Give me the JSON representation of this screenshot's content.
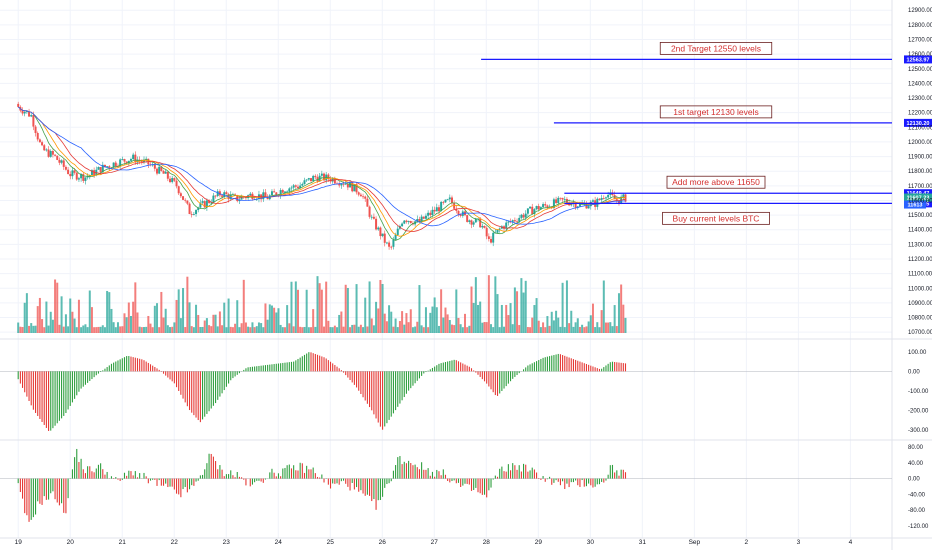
{
  "colors": {
    "up": "#26a69a",
    "down": "#ef5350",
    "target_line": "#1a1aff",
    "annotation_text": "#d32f2f",
    "ma_blue": "#2962ff",
    "ma_red": "#e53935",
    "ma_orange": "#ff9800",
    "ma_green": "#43a047",
    "osc_up": "#2e9e3e",
    "osc_down": "#e53935",
    "grid": "#f0f3fa",
    "axis_text": "#131722"
  },
  "chart_data": [
    {
      "type": "candlestick",
      "panel": "price",
      "y_axis_ticks": [
        12900,
        12800,
        12700,
        12600,
        12500,
        12400,
        12300,
        12200,
        12100,
        12000,
        11900,
        11800,
        11700,
        11600,
        11500,
        11400,
        11300,
        11200,
        11100,
        11000,
        10900,
        10800,
        10700
      ],
      "y_axis_labels": [
        "12900.00",
        "12800.00",
        "12700.00",
        "12600.00",
        "12500.00",
        "12400.00",
        "12300.00",
        "12200.00",
        "12100.00",
        "12000.00",
        "11900.00",
        "11800.00",
        "11700.00",
        "11600.00",
        "11500.00",
        "11400.00",
        "11300.00",
        "11200.00",
        "11100.00",
        "11000.00",
        "10900.00",
        "10800.00",
        "10700.00"
      ],
      "ylim": [
        10660,
        12970
      ],
      "x_axis_labels": [
        "19",
        "20",
        "21",
        "22",
        "23",
        "24",
        "25",
        "26",
        "27",
        "28",
        "29",
        "30",
        "31",
        "Sep",
        "2",
        "3",
        "4"
      ],
      "x_label_days": [
        0,
        1,
        2,
        3,
        4,
        5,
        6,
        7,
        8,
        9,
        10,
        11,
        12,
        13,
        14,
        15,
        16
      ],
      "day_range": [
        -0.35,
        16.8
      ],
      "data_end_day": 11.7,
      "price_path": [
        [
          0.0,
          12240
        ],
        [
          0.25,
          12180
        ],
        [
          0.45,
          11950
        ],
        [
          0.7,
          11900
        ],
        [
          1.0,
          11780
        ],
        [
          1.3,
          11760
        ],
        [
          1.6,
          11820
        ],
        [
          1.9,
          11860
        ],
        [
          2.2,
          11890
        ],
        [
          2.5,
          11850
        ],
        [
          2.8,
          11780
        ],
        [
          3.05,
          11700
        ],
        [
          3.3,
          11520
        ],
        [
          3.6,
          11580
        ],
        [
          3.9,
          11650
        ],
        [
          4.2,
          11610
        ],
        [
          4.5,
          11640
        ],
        [
          4.8,
          11620
        ],
        [
          5.1,
          11680
        ],
        [
          5.4,
          11700
        ],
        [
          5.7,
          11760
        ],
        [
          6.0,
          11750
        ],
        [
          6.3,
          11720
        ],
        [
          6.6,
          11650
        ],
        [
          6.8,
          11470
        ],
        [
          7.0,
          11350
        ],
        [
          7.15,
          11260
        ],
        [
          7.4,
          11480
        ],
        [
          7.7,
          11450
        ],
        [
          8.0,
          11530
        ],
        [
          8.3,
          11600
        ],
        [
          8.6,
          11480
        ],
        [
          8.9,
          11440
        ],
        [
          9.05,
          11320
        ],
        [
          9.3,
          11420
        ],
        [
          9.6,
          11480
        ],
        [
          9.9,
          11540
        ],
        [
          10.2,
          11570
        ],
        [
          10.5,
          11600
        ],
        [
          10.8,
          11570
        ],
        [
          11.1,
          11580
        ],
        [
          11.3,
          11650
        ],
        [
          11.5,
          11600
        ],
        [
          11.7,
          11620
        ]
      ],
      "horizontal_levels": [
        {
          "label": "2nd Target 12550 levels",
          "price_tag": "12563.97",
          "value": 12563.97,
          "start_day": 8.9
        },
        {
          "label": "1st target 12130 levels",
          "price_tag": "12130.20",
          "value": 12130.2,
          "start_day": 10.3
        },
        {
          "label": "Add more above 11650",
          "price_tag": "11649.47",
          "value": 11649.47,
          "start_day": 10.5
        },
        {
          "label": "Buy current levels BTC",
          "price_tag": "11580.15",
          "value": 11580.15,
          "start_day": 10.5
        }
      ],
      "current_price_tags": [
        "11607.23",
        "11613"
      ]
    },
    {
      "type": "bar",
      "panel": "volume",
      "description_series": "volume histogram (up/down colored)",
      "scale_max": 100
    },
    {
      "type": "bar",
      "panel": "oscillator_1",
      "y_axis_ticks": [
        100,
        0,
        -100,
        -200,
        -300
      ],
      "y_axis_labels": [
        "100.00",
        "0.00",
        "-100.00",
        "-200.00",
        "-300.00"
      ],
      "ylim": [
        -340,
        160
      ],
      "values": [
        [
          0.0,
          -40
        ],
        [
          0.3,
          -200
        ],
        [
          0.6,
          -310
        ],
        [
          0.9,
          -220
        ],
        [
          1.2,
          -90
        ],
        [
          1.5,
          -20
        ],
        [
          1.8,
          40
        ],
        [
          2.1,
          80
        ],
        [
          2.4,
          60
        ],
        [
          2.7,
          10
        ],
        [
          3.0,
          -60
        ],
        [
          3.3,
          -200
        ],
        [
          3.5,
          -260
        ],
        [
          3.8,
          -160
        ],
        [
          4.1,
          -40
        ],
        [
          4.4,
          20
        ],
        [
          4.7,
          30
        ],
        [
          5.0,
          40
        ],
        [
          5.3,
          50
        ],
        [
          5.6,
          100
        ],
        [
          5.9,
          70
        ],
        [
          6.2,
          10
        ],
        [
          6.5,
          -80
        ],
        [
          6.8,
          -200
        ],
        [
          7.0,
          -300
        ],
        [
          7.2,
          -220
        ],
        [
          7.5,
          -100
        ],
        [
          7.8,
          -10
        ],
        [
          8.1,
          40
        ],
        [
          8.4,
          60
        ],
        [
          8.7,
          20
        ],
        [
          9.0,
          -60
        ],
        [
          9.2,
          -130
        ],
        [
          9.5,
          -40
        ],
        [
          9.8,
          30
        ],
        [
          10.1,
          70
        ],
        [
          10.4,
          90
        ],
        [
          10.7,
          60
        ],
        [
          11.0,
          30
        ],
        [
          11.2,
          10
        ],
        [
          11.4,
          50
        ],
        [
          11.7,
          40
        ]
      ]
    },
    {
      "type": "bar",
      "panel": "oscillator_2",
      "y_axis_ticks": [
        80,
        40,
        0,
        -40,
        -80,
        -120
      ],
      "y_axis_labels": [
        "80.00",
        "40.00",
        "0.00",
        "-40.00",
        "-80.00",
        "-120.00"
      ],
      "ylim": [
        -130,
        95
      ],
      "values": [
        [
          0.0,
          -20
        ],
        [
          0.2,
          -120
        ],
        [
          0.4,
          -60
        ],
        [
          0.7,
          -40
        ],
        [
          0.9,
          -90
        ],
        [
          1.1,
          70
        ],
        [
          1.3,
          20
        ],
        [
          1.6,
          30
        ],
        [
          1.9,
          -10
        ],
        [
          2.2,
          20
        ],
        [
          2.5,
          -5
        ],
        [
          2.8,
          -20
        ],
        [
          3.1,
          -40
        ],
        [
          3.4,
          -20
        ],
        [
          3.7,
          60
        ],
        [
          3.9,
          20
        ],
        [
          4.2,
          10
        ],
        [
          4.5,
          -20
        ],
        [
          4.8,
          10
        ],
        [
          5.1,
          20
        ],
        [
          5.4,
          30
        ],
        [
          5.7,
          20
        ],
        [
          6.0,
          -20
        ],
        [
          6.3,
          -10
        ],
        [
          6.6,
          -40
        ],
        [
          6.9,
          -70
        ],
        [
          7.1,
          -20
        ],
        [
          7.3,
          50
        ],
        [
          7.6,
          40
        ],
        [
          7.9,
          20
        ],
        [
          8.2,
          10
        ],
        [
          8.5,
          -20
        ],
        [
          8.8,
          -30
        ],
        [
          9.0,
          -50
        ],
        [
          9.2,
          10
        ],
        [
          9.4,
          30
        ],
        [
          9.7,
          30
        ],
        [
          10.0,
          10
        ],
        [
          10.3,
          -10
        ],
        [
          10.6,
          -20
        ],
        [
          10.9,
          -10
        ],
        [
          11.2,
          -20
        ],
        [
          11.4,
          30
        ],
        [
          11.6,
          10
        ]
      ]
    }
  ]
}
